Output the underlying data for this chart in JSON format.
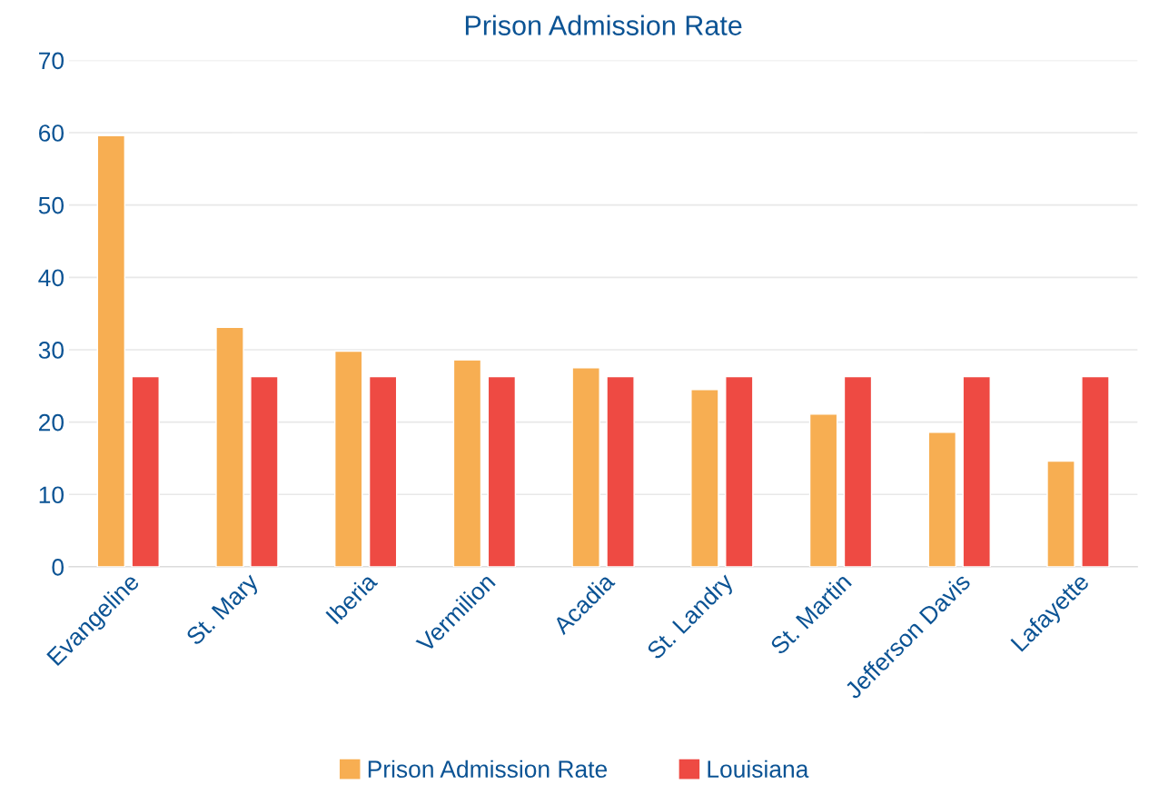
{
  "chart_data": {
    "type": "bar",
    "title": "Prison Admission Rate",
    "categories": [
      "Evangeline",
      "St. Mary",
      "Iberia",
      "Vermilion",
      "Acadia",
      "St. Landry",
      "St. Martin",
      "Jefferson Davis",
      "Lafayette"
    ],
    "series": [
      {
        "name": "Prison Admission Rate",
        "color": "#f7ae52",
        "values": [
          59.6,
          33.1,
          29.8,
          28.6,
          27.5,
          24.5,
          21.1,
          18.6,
          14.6
        ]
      },
      {
        "name": "Louisiana",
        "color": "#ee4a43",
        "values": [
          26.3,
          26.3,
          26.3,
          26.3,
          26.3,
          26.3,
          26.3,
          26.3,
          26.3
        ]
      }
    ],
    "ylim": [
      0,
      70
    ],
    "yticks": [
      0,
      10,
      20,
      30,
      40,
      50,
      60,
      70
    ],
    "grid": "y",
    "legend": "bottom"
  }
}
